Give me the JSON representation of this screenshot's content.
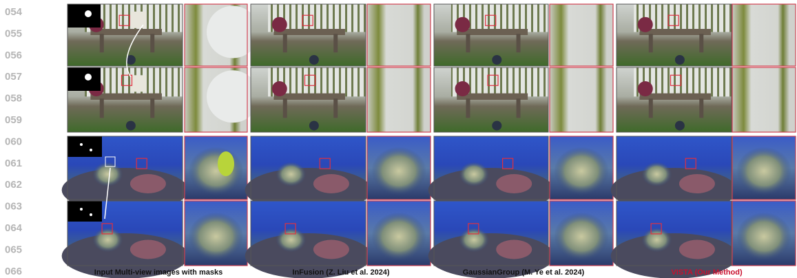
{
  "line_numbers": [
    "054",
    "055",
    "056",
    "057",
    "058",
    "059",
    "060",
    "061",
    "062",
    "063",
    "064",
    "065",
    "066"
  ],
  "captions": [
    "Input Multi-view images with masks",
    "InFusion (Z. Liu et al. 2024)",
    "GaussianGroup (M. Ye et al. 2024)",
    "VISTA (Our Method)"
  ]
}
